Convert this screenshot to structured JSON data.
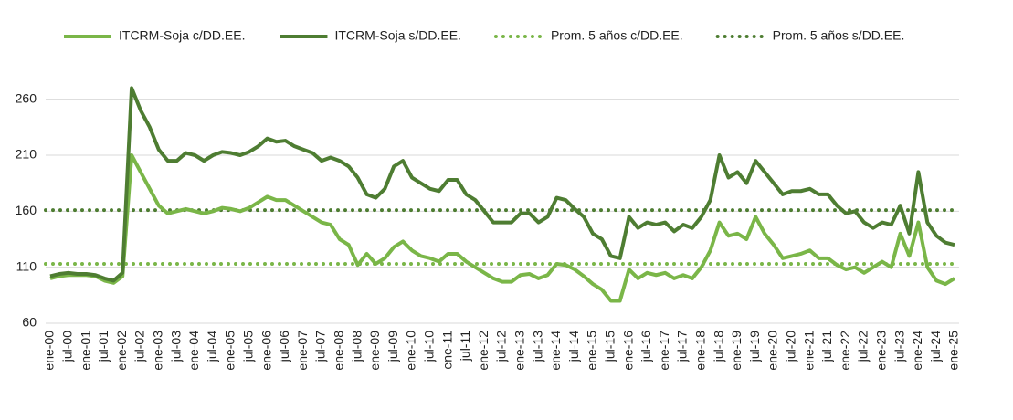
{
  "chart_data": {
    "type": "line",
    "categories": [
      "ene-00",
      null,
      "jul-00",
      null,
      "ene-01",
      null,
      "jul-01",
      null,
      "ene-02",
      null,
      "jul-02",
      null,
      "ene-03",
      null,
      "jul-03",
      null,
      "ene-04",
      null,
      "jul-04",
      null,
      "ene-05",
      null,
      "jul-05",
      null,
      "ene-06",
      null,
      "jul-06",
      null,
      "ene-07",
      null,
      "jul-07",
      null,
      "ene-08",
      null,
      "jul-08",
      null,
      "ene-09",
      null,
      "jul-09",
      null,
      "ene-10",
      null,
      "jul-10",
      null,
      "ene-11",
      null,
      "jul-11",
      null,
      "ene-12",
      null,
      "jul-12",
      null,
      "ene-13",
      null,
      "jul-13",
      null,
      "ene-14",
      null,
      "jul-14",
      null,
      "ene-15",
      null,
      "jul-15",
      null,
      "ene-16",
      null,
      "jul-16",
      null,
      "ene-17",
      null,
      "jul-17",
      null,
      "ene-18",
      null,
      "jul-18",
      null,
      "ene-19",
      null,
      "jul-19",
      null,
      "ene-20",
      null,
      "jul-20",
      null,
      "ene-21",
      null,
      "jul-21",
      null,
      "ene-22",
      null,
      "jul-22",
      null,
      "ene-23",
      null,
      "jul-23",
      null,
      "ene-24",
      null,
      "jul-24",
      null,
      "ene-25"
    ],
    "series": [
      {
        "name": "ITCRM-Soja c/DD.EE.",
        "color": "#7ab648",
        "values": [
          100,
          102,
          103,
          103,
          103,
          102,
          98,
          96,
          102,
          210,
          195,
          180,
          165,
          158,
          160,
          162,
          160,
          158,
          160,
          163,
          162,
          160,
          163,
          168,
          173,
          170,
          170,
          165,
          160,
          155,
          150,
          148,
          135,
          130,
          112,
          122,
          113,
          118,
          128,
          133,
          125,
          120,
          118,
          115,
          122,
          122,
          115,
          110,
          105,
          100,
          97,
          97,
          103,
          104,
          100,
          103,
          113,
          112,
          108,
          102,
          95,
          90,
          80,
          80,
          108,
          100,
          105,
          103,
          105,
          100,
          103,
          100,
          110,
          125,
          150,
          138,
          140,
          135,
          155,
          140,
          130,
          118,
          120,
          122,
          125,
          118,
          118,
          112,
          108,
          110,
          105,
          110,
          115,
          110,
          140,
          120,
          150,
          110,
          98,
          95,
          100
        ]
      },
      {
        "name": "ITCRM-Soja s/DD.EE.",
        "color": "#4e7d32",
        "values": [
          102,
          104,
          105,
          104,
          104,
          103,
          100,
          98,
          105,
          270,
          250,
          235,
          215,
          205,
          205,
          212,
          210,
          205,
          210,
          213,
          212,
          210,
          213,
          218,
          225,
          222,
          223,
          218,
          215,
          212,
          205,
          208,
          205,
          200,
          190,
          175,
          172,
          180,
          200,
          205,
          190,
          185,
          180,
          178,
          188,
          188,
          175,
          170,
          160,
          150,
          150,
          150,
          158,
          158,
          150,
          155,
          172,
          170,
          162,
          155,
          140,
          135,
          120,
          118,
          155,
          145,
          150,
          148,
          150,
          142,
          148,
          145,
          155,
          170,
          210,
          190,
          195,
          185,
          205,
          195,
          185,
          175,
          178,
          178,
          180,
          175,
          175,
          165,
          158,
          160,
          150,
          145,
          150,
          148,
          165,
          140,
          195,
          150,
          138,
          132,
          130
        ]
      }
    ],
    "hlines": [
      {
        "name": "Prom. 5 años c/DD.EE.",
        "color": "#7ab648",
        "value": 113
      },
      {
        "name": "Prom. 5 años s/DD.EE.",
        "color": "#4e7d32",
        "value": 161
      }
    ],
    "ylim": [
      60,
      285
    ],
    "yticks": [
      60,
      110,
      160,
      210,
      260
    ],
    "grid": true
  }
}
